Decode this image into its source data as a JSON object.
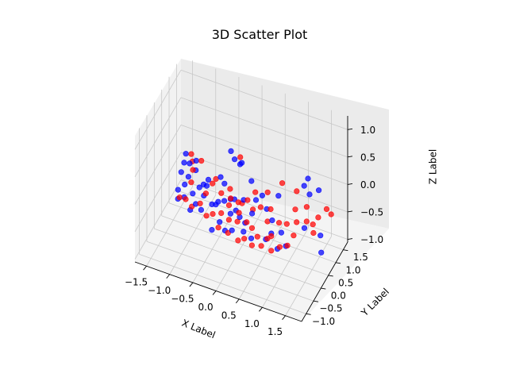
{
  "chart_data": {
    "type": "scatter",
    "projection": "3d",
    "title": "3D Scatter Plot",
    "xlabel": "X Label",
    "ylabel": "Y Label",
    "zlabel": "Z Label",
    "xlim": [
      -1.75,
      1.85
    ],
    "ylim": [
      -1.3,
      1.8
    ],
    "zlim": [
      -1.05,
      1.25
    ],
    "xticks": [
      -1.5,
      -1.0,
      -0.5,
      0.0,
      0.5,
      1.0,
      1.5
    ],
    "xtick_labels": [
      "−1.5",
      "−1.0",
      "−0.5",
      "0.0",
      "0.5",
      "1.0",
      "1.5"
    ],
    "yticks": [
      -1.0,
      -0.5,
      0.0,
      0.5,
      1.0,
      1.5
    ],
    "ytick_labels": [
      "−1.0",
      "−0.5",
      "0.0",
      "0.5",
      "1.0",
      "1.5"
    ],
    "zticks": [
      -1.0,
      -0.5,
      0.0,
      0.5,
      1.0
    ],
    "ztick_labels": [
      "−1.0",
      "−0.5",
      "0.0",
      "0.5",
      "1.0"
    ],
    "grid": true,
    "series": [
      {
        "name": "blue",
        "color": "#0000ff",
        "points": [
          [
            -1.05,
            -0.05,
            0.55
          ],
          [
            -0.98,
            -0.02,
            0.38
          ],
          [
            -1.12,
            0.05,
            0.32
          ],
          [
            -0.85,
            0.02,
            0.45
          ],
          [
            -1.2,
            0.1,
            0.1
          ],
          [
            -1.05,
            0.12,
            0.05
          ],
          [
            -0.9,
            0.15,
            0.2
          ],
          [
            -1.15,
            0.18,
            -0.15
          ],
          [
            -0.8,
            0.08,
            -0.05
          ],
          [
            -1.3,
            0.2,
            -0.3
          ],
          [
            -1.0,
            0.25,
            -0.3
          ],
          [
            -0.7,
            0.05,
            0.05
          ],
          [
            -0.6,
            -0.05,
            0.1
          ],
          [
            -0.75,
            0.22,
            -0.25
          ],
          [
            -1.35,
            0.35,
            -0.55
          ],
          [
            -1.2,
            0.3,
            -0.45
          ],
          [
            -0.95,
            0.3,
            -0.5
          ],
          [
            -0.85,
            0.35,
            -0.6
          ],
          [
            -1.1,
            0.4,
            -0.7
          ],
          [
            -0.6,
            0.3,
            -0.4
          ],
          [
            -0.5,
            0.25,
            -0.35
          ],
          [
            -0.3,
            0.2,
            -0.2
          ],
          [
            -0.2,
            0.3,
            -0.45
          ],
          [
            -0.15,
            0.15,
            -0.1
          ],
          [
            0.0,
            0.3,
            -0.45
          ],
          [
            0.1,
            0.35,
            -0.55
          ],
          [
            -0.45,
            0.35,
            -0.7
          ],
          [
            -0.35,
            0.4,
            -0.85
          ],
          [
            -0.2,
            0.4,
            -0.8
          ],
          [
            0.05,
            0.4,
            -0.75
          ],
          [
            0.2,
            0.45,
            -0.85
          ],
          [
            -0.4,
            0.1,
            -0.2
          ],
          [
            -0.25,
            0.05,
            0.2
          ],
          [
            -0.05,
            0.1,
            -0.05
          ],
          [
            0.15,
            0.1,
            0.0
          ],
          [
            0.3,
            0.2,
            -0.25
          ],
          [
            0.4,
            0.15,
            0.05
          ],
          [
            0.55,
            0.1,
            0.2
          ],
          [
            0.6,
            0.25,
            -0.1
          ],
          [
            0.9,
            0.1,
            0.3
          ],
          [
            0.2,
            -0.3,
            0.85
          ],
          [
            0.3,
            -0.5,
            1.0
          ],
          [
            0.1,
            -0.6,
            1.2
          ],
          [
            0.05,
            -0.2,
            0.85
          ],
          [
            0.7,
            0.3,
            -0.3
          ],
          [
            0.75,
            0.5,
            -0.9
          ],
          [
            0.5,
            0.5,
            -0.8
          ],
          [
            0.9,
            0.6,
            -0.85
          ],
          [
            0.65,
            0.4,
            -0.6
          ],
          [
            1.2,
            0.9,
            0.2
          ],
          [
            1.3,
            0.95,
            0.05
          ],
          [
            1.45,
            1.1,
            0.1
          ],
          [
            1.3,
            0.6,
            -0.4
          ],
          [
            1.6,
            0.8,
            -0.85
          ],
          [
            1.55,
            0.9,
            -0.6
          ],
          [
            1.25,
            1.0,
            0.3
          ],
          [
            -0.55,
            -0.1,
            0.25
          ],
          [
            -0.3,
            -0.05,
            0.35
          ],
          [
            0.35,
            0.0,
            0.45
          ],
          [
            -0.65,
            0.45,
            -0.95
          ],
          [
            0.85,
            0.45,
            -0.55
          ],
          [
            -0.05,
            0.2,
            -0.3
          ]
        ]
      },
      {
        "name": "red",
        "color": "#ff0000",
        "points": [
          [
            -0.95,
            0.0,
            0.55
          ],
          [
            -0.95,
            0.08,
            0.38
          ],
          [
            -0.7,
            -0.1,
            0.55
          ],
          [
            -1.0,
            0.15,
            -0.05
          ],
          [
            -1.25,
            0.15,
            -0.4
          ],
          [
            -1.15,
            0.25,
            -0.45
          ],
          [
            -0.85,
            0.28,
            -0.45
          ],
          [
            -0.55,
            0.18,
            0.05
          ],
          [
            -0.45,
            0.1,
            0.2
          ],
          [
            -0.35,
            0.15,
            -0.05
          ],
          [
            -0.6,
            0.35,
            -0.6
          ],
          [
            -0.4,
            0.3,
            -0.5
          ],
          [
            -0.25,
            0.35,
            -0.6
          ],
          [
            -0.05,
            0.3,
            -0.55
          ],
          [
            0.15,
            0.3,
            -0.5
          ],
          [
            0.25,
            0.35,
            -0.6
          ],
          [
            0.35,
            0.4,
            -0.75
          ],
          [
            0.05,
            0.45,
            -0.9
          ],
          [
            -0.1,
            0.5,
            -1.0
          ],
          [
            0.4,
            0.5,
            -0.95
          ],
          [
            0.6,
            0.55,
            -1.0
          ],
          [
            0.8,
            0.5,
            -0.85
          ],
          [
            0.95,
            0.55,
            -0.8
          ],
          [
            0.6,
            0.3,
            -0.35
          ],
          [
            0.85,
            0.3,
            -0.3
          ],
          [
            1.0,
            0.35,
            -0.3
          ],
          [
            1.1,
            0.5,
            -0.55
          ],
          [
            0.5,
            0.15,
            -0.05
          ],
          [
            0.7,
            0.2,
            -0.05
          ],
          [
            0.45,
            -0.05,
            0.3
          ],
          [
            0.25,
            0.05,
            0.05
          ],
          [
            0.05,
            0.05,
            -0.05
          ],
          [
            -0.1,
            0.0,
            0.0
          ],
          [
            0.3,
            -0.6,
            1.15
          ],
          [
            1.15,
            0.55,
            0.25
          ],
          [
            1.35,
            0.6,
            0.0
          ],
          [
            1.55,
            0.75,
            -0.2
          ],
          [
            1.7,
            0.85,
            -0.05
          ],
          [
            1.75,
            1.0,
            -0.2
          ],
          [
            1.3,
            0.75,
            -0.35
          ],
          [
            1.1,
            0.7,
            -0.4
          ],
          [
            1.4,
            0.9,
            -0.6
          ],
          [
            1.5,
            0.55,
            -0.25
          ],
          [
            0.95,
            0.2,
            0.5
          ],
          [
            -0.2,
            0.2,
            -0.25
          ],
          [
            0.0,
            0.25,
            -0.35
          ],
          [
            -0.65,
            0.05,
            -0.1
          ],
          [
            -0.5,
            0.42,
            -0.85
          ],
          [
            -0.3,
            0.45,
            -0.9
          ],
          [
            0.2,
            0.5,
            -1.0
          ],
          [
            -0.75,
            0.4,
            -0.7
          ],
          [
            0.65,
            0.4,
            -0.65
          ],
          [
            0.3,
            0.25,
            -0.2
          ],
          [
            -0.9,
            -0.05,
            0.3
          ],
          [
            0.7,
            0.0,
            0.35
          ],
          [
            1.2,
            0.3,
            0.05
          ],
          [
            -0.15,
            0.12,
            0.1
          ],
          [
            0.55,
            0.45,
            -0.75
          ],
          [
            0.1,
            0.15,
            -0.1
          ],
          [
            -1.05,
            0.35,
            -0.6
          ]
        ]
      }
    ]
  }
}
